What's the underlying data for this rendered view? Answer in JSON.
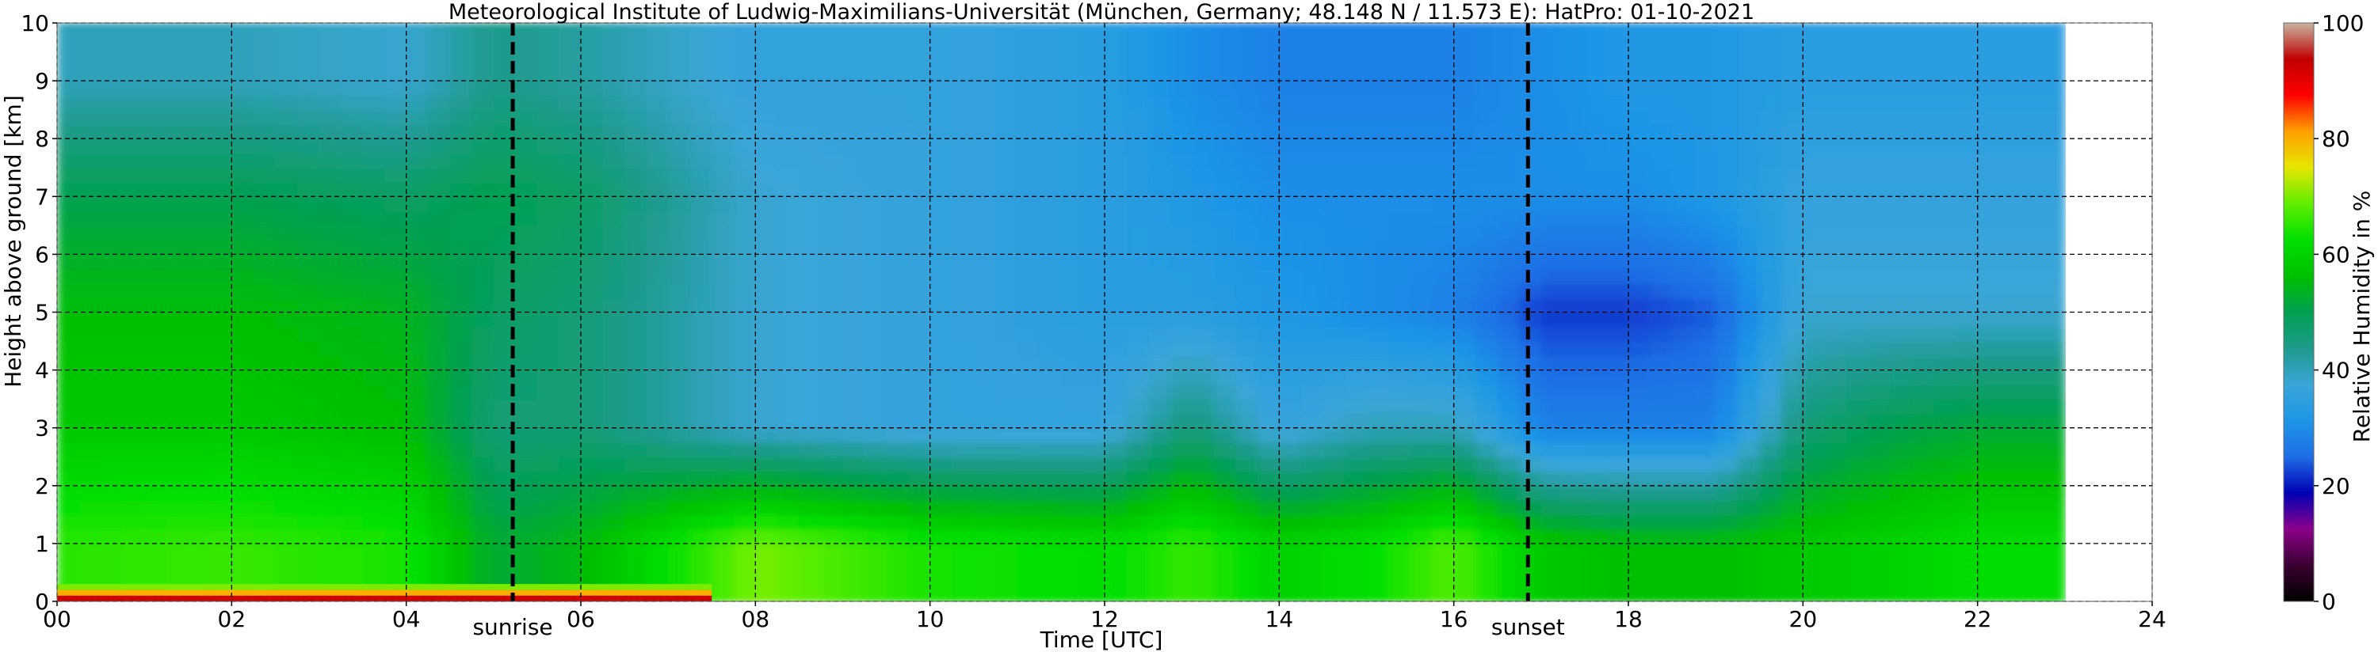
{
  "chart_data": {
    "type": "heatmap",
    "title": "Meteorological Institute of Ludwig-Maximilians-Universität (München, Germany; 48.148 N / 11.573 E):    HatPro: 01-10-2021",
    "xlabel": "Time [UTC]",
    "ylabel": "Height above ground [km]",
    "xlim": [
      0,
      24
    ],
    "ylim": [
      0,
      10
    ],
    "x_ticks": [
      "00",
      "02",
      "04",
      "06",
      "08",
      "10",
      "12",
      "14",
      "16",
      "18",
      "20",
      "22",
      "24"
    ],
    "y_ticks": [
      "0",
      "1",
      "2",
      "3",
      "4",
      "5",
      "6",
      "7",
      "8",
      "9",
      "10"
    ],
    "grid": true,
    "data_extent_x": [
      0,
      23
    ],
    "colorbar": {
      "label": "Relative Humidity in %",
      "range": [
        0,
        100
      ],
      "ticks": [
        "0",
        "20",
        "40",
        "60",
        "80",
        "100"
      ],
      "colors": [
        "#000000",
        "#3a0030",
        "#8b008b",
        "#0000b4",
        "#1e6ee6",
        "#1e96e6",
        "#3aa6d8",
        "#1e9b8c",
        "#00a050",
        "#00c000",
        "#00e000",
        "#60ee00",
        "#e6e600",
        "#ffa000",
        "#ff0000",
        "#c00000",
        "#c8b4a0"
      ]
    },
    "annotations": [
      {
        "label": "sunrise",
        "x": 5.22
      },
      {
        "label": "sunset",
        "x": 16.85
      }
    ],
    "approx_profile": {
      "hours": [
        0,
        2,
        4,
        5,
        6,
        8,
        10,
        12,
        13,
        14,
        15,
        16,
        17,
        18,
        19,
        20,
        21,
        22,
        23
      ],
      "rh_0_2km": [
        65,
        66,
        64,
        52,
        55,
        70,
        64,
        62,
        66,
        60,
        62,
        68,
        58,
        56,
        56,
        58,
        60,
        62,
        62
      ],
      "rh_2_4km": [
        58,
        58,
        56,
        46,
        46,
        38,
        36,
        36,
        46,
        36,
        40,
        40,
        28,
        28,
        28,
        46,
        50,
        52,
        52
      ],
      "rh_4_6km": [
        56,
        56,
        54,
        48,
        46,
        38,
        36,
        34,
        34,
        32,
        30,
        28,
        22,
        22,
        24,
        38,
        38,
        38,
        38
      ],
      "rh_6_8km": [
        50,
        50,
        48,
        50,
        48,
        38,
        36,
        34,
        32,
        30,
        30,
        30,
        30,
        30,
        32,
        36,
        36,
        36,
        36
      ],
      "rh_8_10km": [
        40,
        40,
        38,
        44,
        42,
        36,
        36,
        34,
        30,
        28,
        28,
        28,
        30,
        32,
        32,
        34,
        34,
        34,
        34
      ]
    }
  }
}
